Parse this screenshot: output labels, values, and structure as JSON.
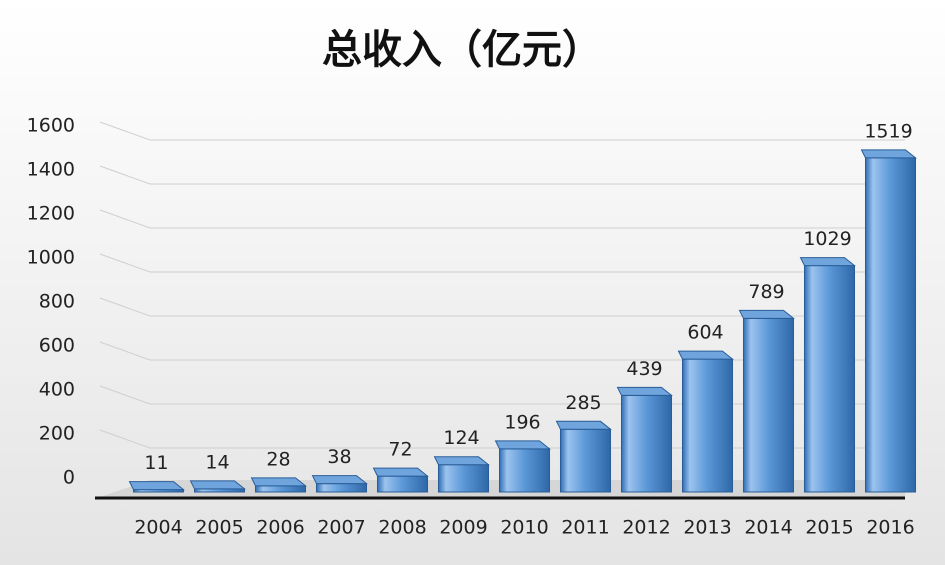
{
  "chart_data": {
    "type": "bar",
    "title": "总收入（亿元）",
    "categories": [
      "2004",
      "2005",
      "2006",
      "2007",
      "2008",
      "2009",
      "2010",
      "2011",
      "2012",
      "2013",
      "2014",
      "2015",
      "2016"
    ],
    "values": [
      11,
      14,
      28,
      38,
      72,
      124,
      196,
      285,
      439,
      604,
      789,
      1029,
      1519
    ],
    "color": "#4a86c8",
    "ylim": [
      0,
      1600
    ],
    "yticks": [
      0,
      200,
      400,
      600,
      800,
      1000,
      1200,
      1400,
      1600
    ],
    "grid": true
  }
}
